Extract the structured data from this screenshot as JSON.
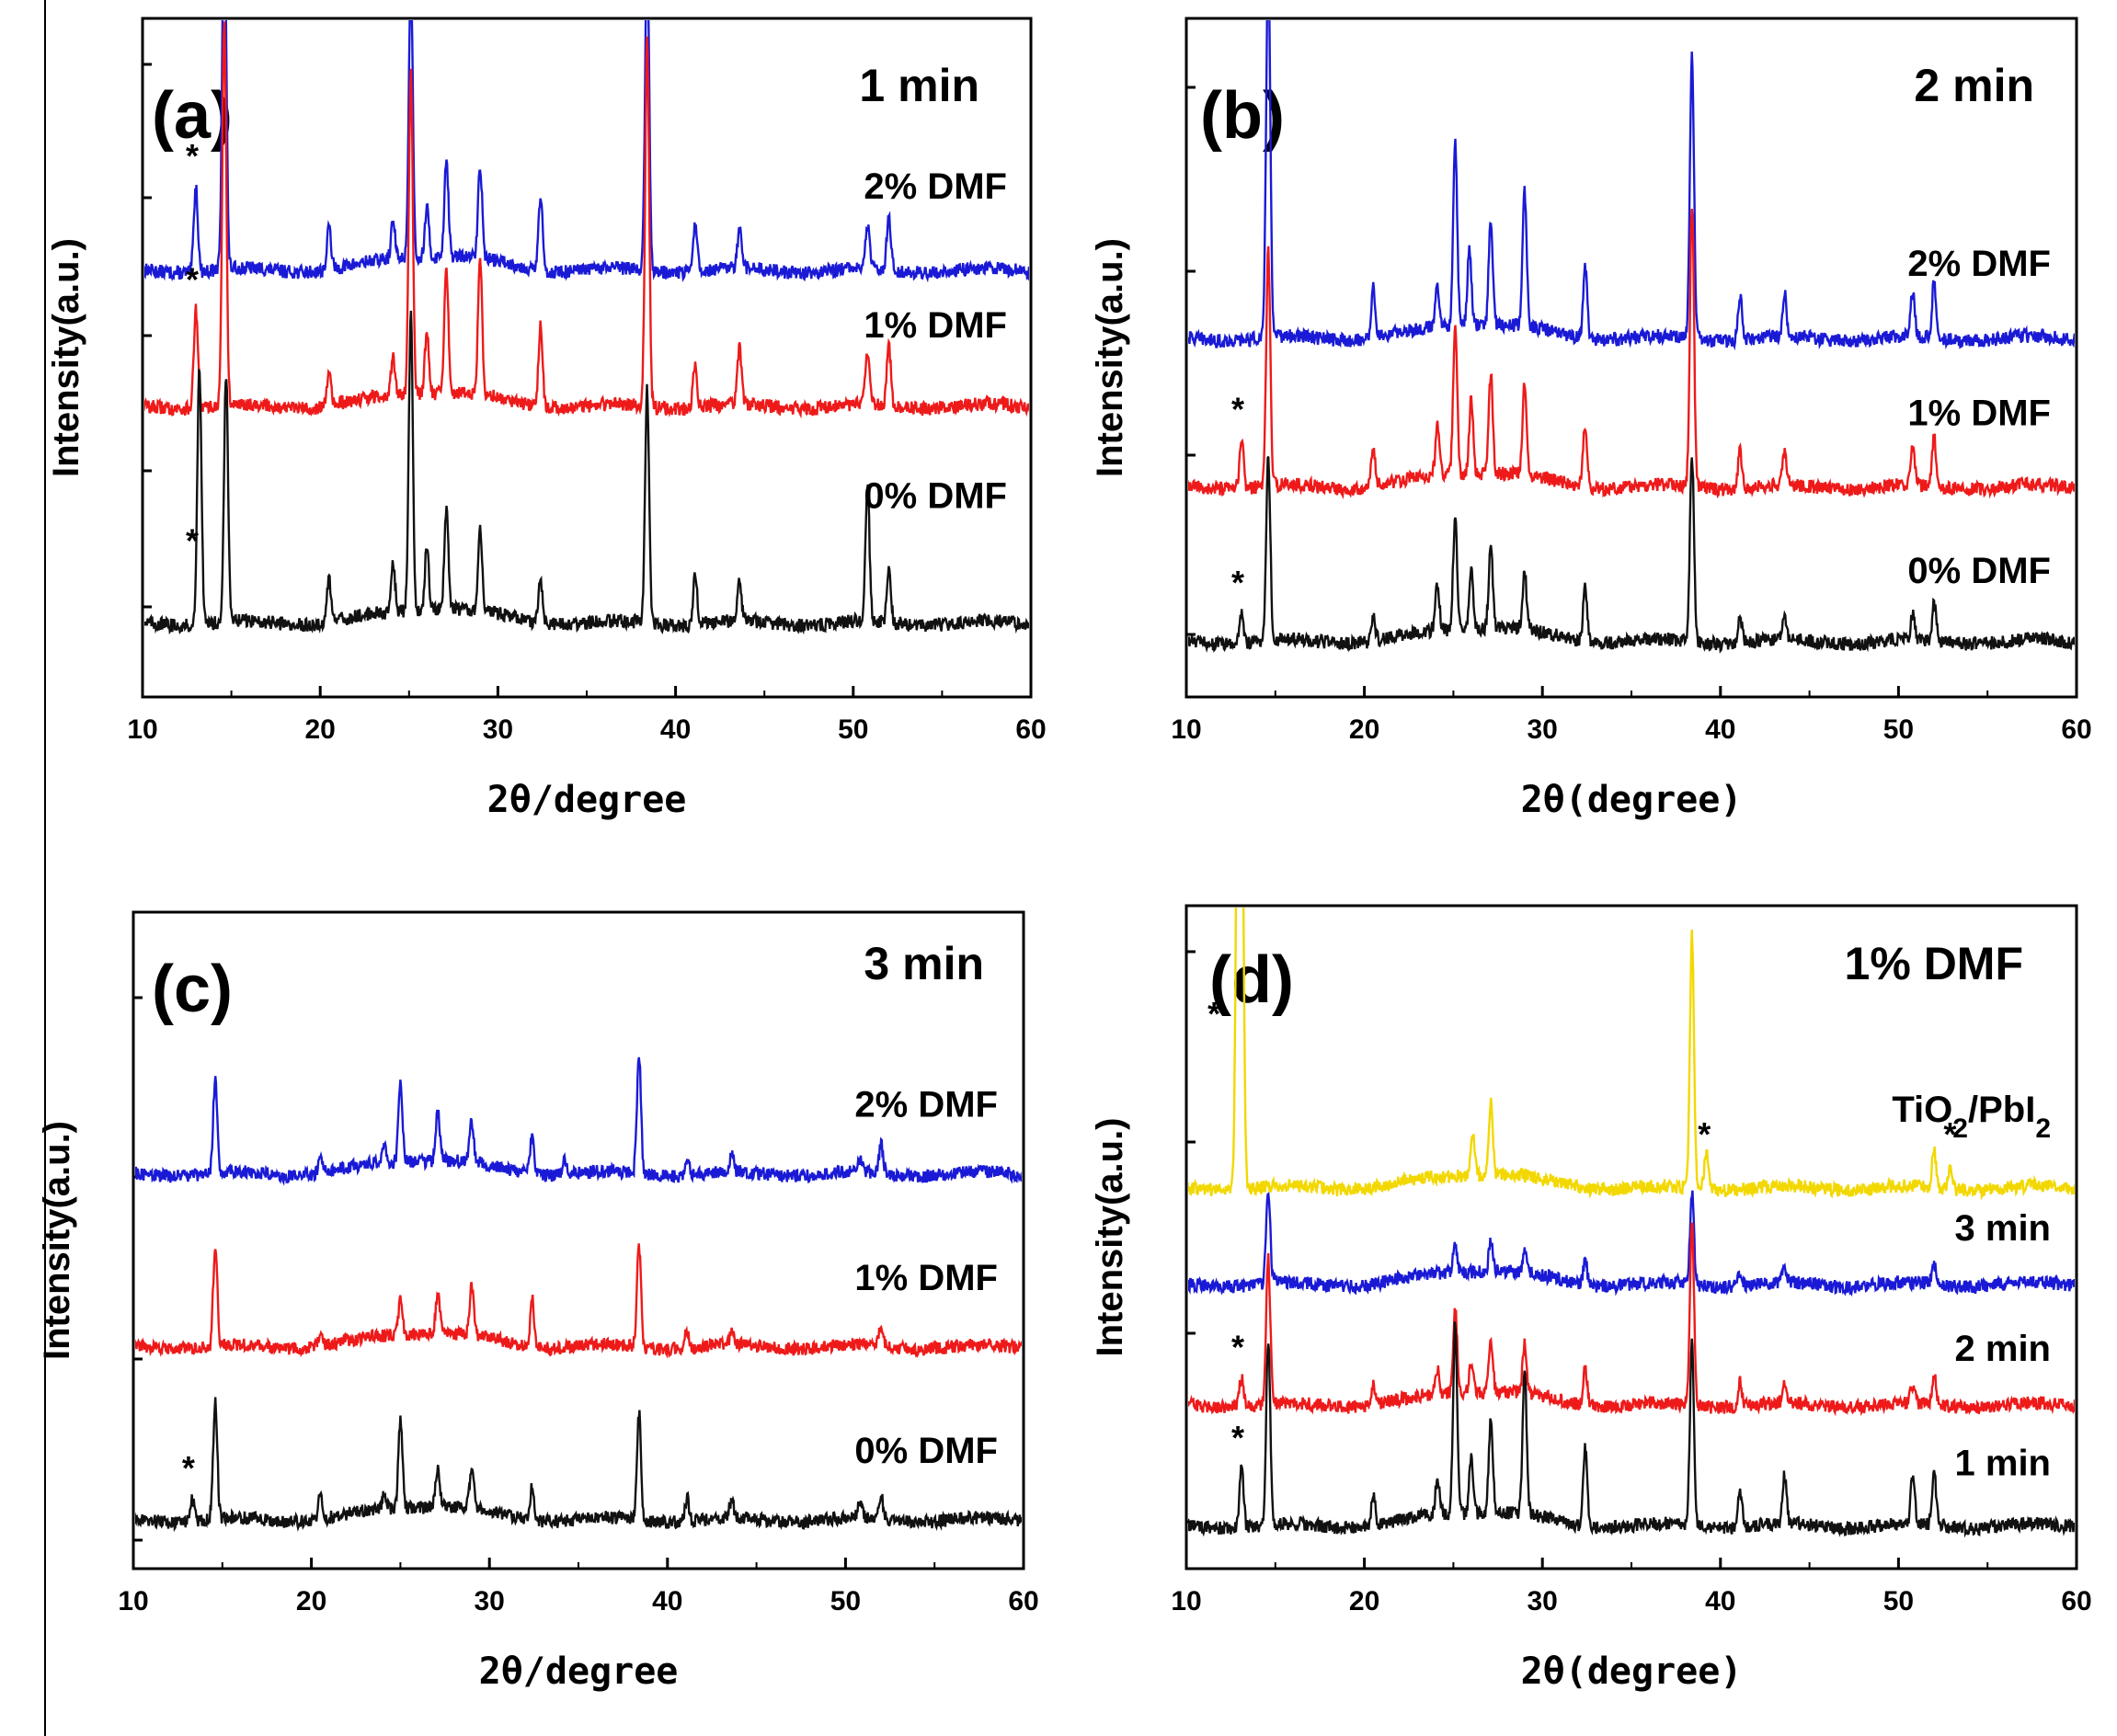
{
  "chart_data": [
    {
      "type": "line",
      "panel_label": "(a)",
      "corner_label": "1 min",
      "xlabel": "2θ/degree",
      "ylabel": "Intensity(a.u.)",
      "xlim": [
        10,
        60
      ],
      "xticks": [
        "10",
        "20",
        "30",
        "40",
        "50",
        "60"
      ],
      "series": [
        {
          "name": "2% DMF",
          "color": "#1a1ad6",
          "star_x": 13.0,
          "offset": 0.63,
          "peaks": [
            [
              13.0,
              0.14
            ],
            [
              14.6,
              0.6
            ],
            [
              20.5,
              0.07
            ],
            [
              24.1,
              0.06
            ],
            [
              25.1,
              0.45
            ],
            [
              26.0,
              0.08
            ],
            [
              27.1,
              0.16
            ],
            [
              29.0,
              0.15
            ],
            [
              32.4,
              0.12
            ],
            [
              38.4,
              0.52
            ],
            [
              41.1,
              0.08
            ],
            [
              43.6,
              0.06
            ],
            [
              50.8,
              0.07
            ],
            [
              52.0,
              0.09
            ]
          ]
        },
        {
          "name": "1% DMF",
          "color": "#ee1a1a",
          "star_x": 13.0,
          "offset": 0.41,
          "peaks": [
            [
              13.0,
              0.16
            ],
            [
              14.6,
              0.62
            ],
            [
              20.5,
              0.05
            ],
            [
              24.1,
              0.06
            ],
            [
              25.1,
              0.52
            ],
            [
              26.0,
              0.1
            ],
            [
              27.1,
              0.2
            ],
            [
              29.0,
              0.22
            ],
            [
              32.4,
              0.13
            ],
            [
              38.4,
              0.6
            ],
            [
              41.1,
              0.07
            ],
            [
              43.6,
              0.09
            ],
            [
              50.8,
              0.08
            ],
            [
              52.0,
              0.1
            ]
          ]
        },
        {
          "name": "0% DMF",
          "color": "#111111",
          "star_x": 13.0,
          "offset": 0.06,
          "peaks": [
            [
              13.2,
              0.42
            ],
            [
              14.7,
              0.4
            ],
            [
              20.5,
              0.07
            ],
            [
              24.1,
              0.08
            ],
            [
              25.1,
              0.48
            ],
            [
              26.0,
              0.1
            ],
            [
              27.1,
              0.16
            ],
            [
              29.0,
              0.13
            ],
            [
              32.4,
              0.07
            ],
            [
              38.4,
              0.38
            ],
            [
              41.1,
              0.08
            ],
            [
              43.6,
              0.06
            ],
            [
              50.8,
              0.22
            ],
            [
              52.0,
              0.08
            ]
          ]
        }
      ]
    },
    {
      "type": "line",
      "panel_label": "(b)",
      "corner_label": "2 min",
      "xlabel": "2θ(degree)",
      "ylabel": "Intensity(a.u.)",
      "xlim": [
        10,
        60
      ],
      "xticks": [
        "10",
        "20",
        "30",
        "40",
        "50",
        "60"
      ],
      "series": [
        {
          "name": "2% DMF",
          "color": "#1a1ad6",
          "star_x": null,
          "offset": 0.52,
          "peaks": [
            [
              14.6,
              0.62
            ],
            [
              20.5,
              0.08
            ],
            [
              24.1,
              0.07
            ],
            [
              25.1,
              0.3
            ],
            [
              25.9,
              0.12
            ],
            [
              27.1,
              0.17
            ],
            [
              29.0,
              0.22
            ],
            [
              32.4,
              0.12
            ],
            [
              38.4,
              0.46
            ],
            [
              41.1,
              0.07
            ],
            [
              43.6,
              0.07
            ],
            [
              50.8,
              0.07
            ],
            [
              52.0,
              0.09
            ]
          ]
        },
        {
          "name": "1% DMF",
          "color": "#ee1a1a",
          "star_x": 13.1,
          "offset": 0.28,
          "peaks": [
            [
              13.1,
              0.08
            ],
            [
              14.6,
              0.38
            ],
            [
              20.5,
              0.06
            ],
            [
              24.1,
              0.08
            ],
            [
              25.1,
              0.24
            ],
            [
              26.0,
              0.12
            ],
            [
              27.1,
              0.16
            ],
            [
              29.0,
              0.15
            ],
            [
              32.4,
              0.1
            ],
            [
              38.4,
              0.46
            ],
            [
              41.1,
              0.06
            ],
            [
              43.6,
              0.05
            ],
            [
              50.8,
              0.06
            ],
            [
              52.0,
              0.08
            ]
          ]
        },
        {
          "name": "0% DMF",
          "color": "#111111",
          "star_x": 13.1,
          "offset": 0.03,
          "peaks": [
            [
              13.1,
              0.05
            ],
            [
              14.6,
              0.3
            ],
            [
              20.5,
              0.04
            ],
            [
              24.1,
              0.07
            ],
            [
              25.1,
              0.18
            ],
            [
              26.0,
              0.1
            ],
            [
              27.1,
              0.13
            ],
            [
              29.0,
              0.09
            ],
            [
              32.4,
              0.09
            ],
            [
              38.4,
              0.3
            ],
            [
              41.1,
              0.04
            ],
            [
              43.6,
              0.04
            ],
            [
              50.8,
              0.04
            ],
            [
              52.0,
              0.06
            ]
          ]
        }
      ]
    },
    {
      "type": "line",
      "panel_label": "(c)",
      "corner_label": "3 min",
      "xlabel": "2θ/degree",
      "ylabel": "Intensity(a.u.)",
      "xlim": [
        10,
        60
      ],
      "xticks": [
        "10",
        "20",
        "30",
        "40",
        "50",
        "60"
      ],
      "series": [
        {
          "name": "2% DMF",
          "color": "#1a1ad6",
          "star_x": null,
          "offset": 0.6,
          "peaks": [
            [
              14.6,
              0.16
            ],
            [
              20.5,
              0.03
            ],
            [
              24.1,
              0.03
            ],
            [
              25.0,
              0.13
            ],
            [
              27.1,
              0.08
            ],
            [
              29.0,
              0.07
            ],
            [
              32.4,
              0.06
            ],
            [
              34.2,
              0.03
            ],
            [
              38.4,
              0.2
            ],
            [
              41.1,
              0.03
            ],
            [
              43.6,
              0.03
            ],
            [
              50.8,
              0.02
            ],
            [
              52.0,
              0.05
            ]
          ]
        },
        {
          "name": "1% DMF",
          "color": "#ee1a1a",
          "star_x": null,
          "offset": 0.31,
          "peaks": [
            [
              14.6,
              0.17
            ],
            [
              20.5,
              0.02
            ],
            [
              25.0,
              0.06
            ],
            [
              27.1,
              0.07
            ],
            [
              29.0,
              0.08
            ],
            [
              32.4,
              0.08
            ],
            [
              38.4,
              0.17
            ],
            [
              41.1,
              0.03
            ],
            [
              43.6,
              0.02
            ],
            [
              52.0,
              0.04
            ]
          ]
        },
        {
          "name": "0% DMF",
          "color": "#111111",
          "star_x": 13.3,
          "offset": 0.02,
          "peaks": [
            [
              13.3,
              0.04
            ],
            [
              14.6,
              0.2
            ],
            [
              20.5,
              0.04
            ],
            [
              24.1,
              0.03
            ],
            [
              25.0,
              0.15
            ],
            [
              27.1,
              0.07
            ],
            [
              29.0,
              0.07
            ],
            [
              32.4,
              0.06
            ],
            [
              38.4,
              0.18
            ],
            [
              41.1,
              0.04
            ],
            [
              43.6,
              0.03
            ],
            [
              50.8,
              0.03
            ],
            [
              52.0,
              0.04
            ]
          ]
        }
      ]
    },
    {
      "type": "line",
      "panel_label": "(d)",
      "corner_label": "1% DMF",
      "xlabel": "2θ(degree)",
      "ylabel": "Intensity(a.u.)",
      "xlim": [
        10,
        60
      ],
      "xticks": [
        "10",
        "20",
        "30",
        "40",
        "50",
        "60"
      ],
      "series": [
        {
          "name": "TiO2/PbI2",
          "color": "#f2d800",
          "star_x": 13.0,
          "offset": 0.57,
          "extra_stars": [
            39.3,
            53.1
          ],
          "peaks": [
            [
              12.9,
              0.75
            ],
            [
              13.1,
              0.75
            ],
            [
              26.1,
              0.07
            ],
            [
              27.1,
              0.12
            ],
            [
              38.4,
              0.42
            ],
            [
              39.2,
              0.06
            ],
            [
              52.0,
              0.06
            ],
            [
              52.9,
              0.04
            ]
          ]
        },
        {
          "name": "3 min",
          "color": "#1a1ad6",
          "star_x": null,
          "offset": 0.41,
          "peaks": [
            [
              14.6,
              0.15
            ],
            [
              25.1,
              0.05
            ],
            [
              27.1,
              0.05
            ],
            [
              29.0,
              0.04
            ],
            [
              32.4,
              0.04
            ],
            [
              38.4,
              0.15
            ],
            [
              41.1,
              0.02
            ],
            [
              43.6,
              0.02
            ],
            [
              52.0,
              0.03
            ]
          ]
        },
        {
          "name": "2 min",
          "color": "#ee1a1a",
          "star_x": 13.1,
          "offset": 0.21,
          "peaks": [
            [
              13.1,
              0.05
            ],
            [
              14.6,
              0.24
            ],
            [
              20.5,
              0.03
            ],
            [
              24.1,
              0.04
            ],
            [
              25.1,
              0.14
            ],
            [
              26.0,
              0.05
            ],
            [
              27.1,
              0.09
            ],
            [
              29.0,
              0.08
            ],
            [
              32.4,
              0.06
            ],
            [
              38.4,
              0.3
            ],
            [
              41.1,
              0.04
            ],
            [
              43.6,
              0.03
            ],
            [
              50.8,
              0.03
            ],
            [
              52.0,
              0.05
            ]
          ]
        },
        {
          "name": "1 min",
          "color": "#111111",
          "star_x": 13.1,
          "offset": 0.01,
          "peaks": [
            [
              13.1,
              0.1
            ],
            [
              14.6,
              0.3
            ],
            [
              20.5,
              0.05
            ],
            [
              24.1,
              0.06
            ],
            [
              25.1,
              0.32
            ],
            [
              26.0,
              0.09
            ],
            [
              27.1,
              0.15
            ],
            [
              29.0,
              0.24
            ],
            [
              32.4,
              0.13
            ],
            [
              38.4,
              0.3
            ],
            [
              41.1,
              0.06
            ],
            [
              43.6,
              0.08
            ],
            [
              50.8,
              0.08
            ],
            [
              52.0,
              0.09
            ]
          ]
        }
      ]
    }
  ]
}
